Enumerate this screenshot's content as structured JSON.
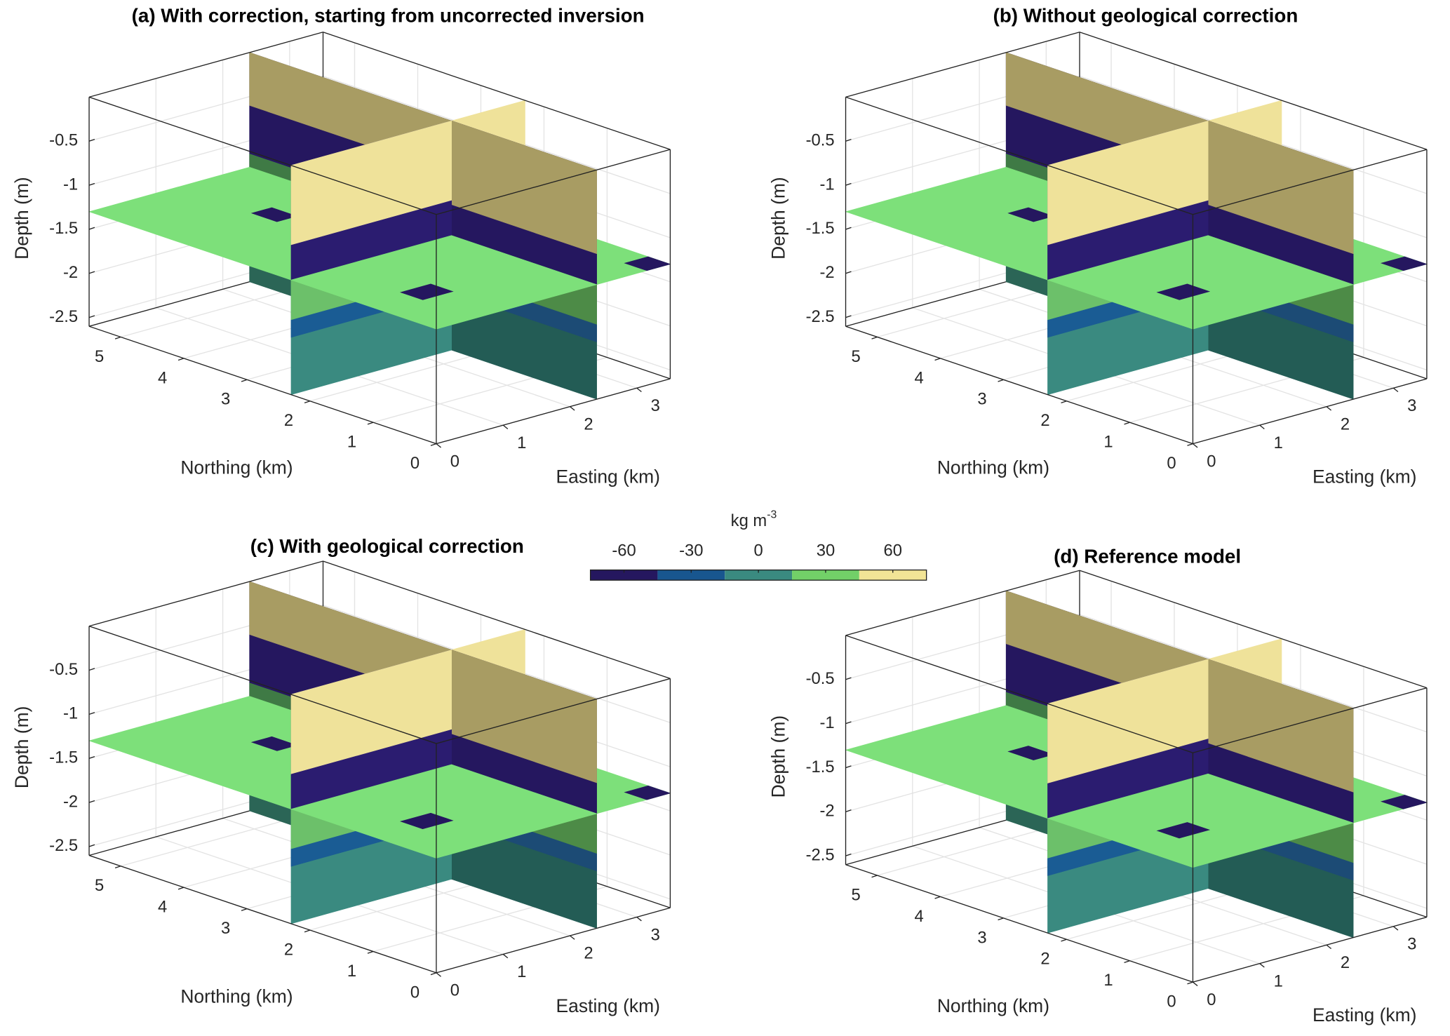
{
  "chart_data": [
    {
      "type": "slice3d",
      "title": "(a) With correction, starting from uncorrected inversion",
      "xlabel": "Easting (km)",
      "ylabel": "Northing (km)",
      "zlabel": "Depth (m)",
      "xlim": [
        0,
        3.5
      ],
      "xticks": [
        0,
        1,
        2,
        3
      ],
      "ylim": [
        0,
        5.5
      ],
      "yticks": [
        0,
        1,
        2,
        3,
        4,
        5
      ],
      "zlim": [
        -2.6,
        0
      ],
      "zticks": [
        -2.5,
        -2,
        -1.5,
        -1,
        -0.5
      ],
      "slices": {
        "x": 2.4,
        "y": 2.3,
        "z": -1.3
      }
    },
    {
      "type": "slice3d",
      "title": "(b) Without geological correction",
      "xlabel": "Easting (km)",
      "ylabel": "Northing (km)",
      "zlabel": "Depth (m)",
      "xlim": [
        0,
        3.5
      ],
      "xticks": [
        0,
        1,
        2,
        3
      ],
      "ylim": [
        0,
        5.5
      ],
      "yticks": [
        0,
        1,
        2,
        3,
        4,
        5
      ],
      "zlim": [
        -2.6,
        0
      ],
      "zticks": [
        -2.5,
        -2,
        -1.5,
        -1,
        -0.5
      ],
      "slices": {
        "x": 2.4,
        "y": 2.3,
        "z": -1.3
      }
    },
    {
      "type": "slice3d",
      "title": "(c) With geological correction",
      "xlabel": "Easting (km)",
      "ylabel": "Northing (km)",
      "zlabel": "Depth (m)",
      "xlim": [
        0,
        3.5
      ],
      "xticks": [
        0,
        1,
        2,
        3
      ],
      "ylim": [
        0,
        5.5
      ],
      "yticks": [
        0,
        1,
        2,
        3,
        4,
        5
      ],
      "zlim": [
        -2.6,
        0
      ],
      "zticks": [
        -2.5,
        -2,
        -1.5,
        -1,
        -0.5
      ],
      "slices": {
        "x": 2.4,
        "y": 2.3,
        "z": -1.3
      }
    },
    {
      "type": "slice3d",
      "title": "(d) Reference model",
      "xlabel": "Easting (km)",
      "ylabel": "Northing (km)",
      "zlabel": "Depth (m)",
      "xlim": [
        0,
        3.5
      ],
      "xticks": [
        0,
        1,
        2,
        3
      ],
      "ylim": [
        0,
        5.5
      ],
      "yticks": [
        0,
        1,
        2,
        3,
        4,
        5
      ],
      "zlim": [
        -2.6,
        0
      ],
      "zticks": [
        -2.5,
        -2,
        -1.5,
        -1,
        -0.5
      ],
      "slices": {
        "x": 2.4,
        "y": 2.3,
        "z": -1.3
      }
    }
  ],
  "colorbar": {
    "label": "kg m",
    "label_exponent": "-3",
    "lim": [
      -75,
      75
    ],
    "ticks": [
      -60,
      -30,
      0,
      30,
      60
    ],
    "colors": [
      "#25175f",
      "#18568f",
      "#3a8a80",
      "#72d068",
      "#f2e496"
    ]
  }
}
